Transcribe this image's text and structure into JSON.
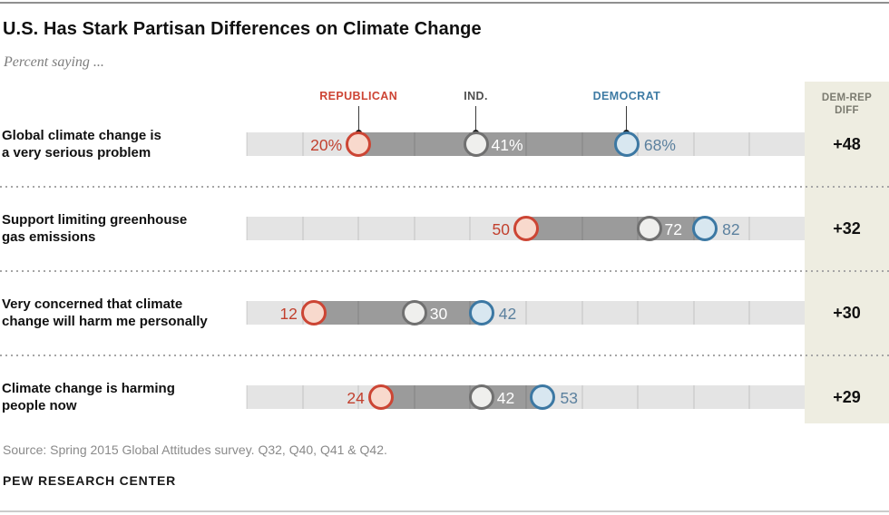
{
  "header": {
    "title": "U.S. Has Stark Partisan Differences on Climate Change",
    "subtitle": "Percent saying ..."
  },
  "legend": [
    {
      "key": "rep",
      "label": "REPUBLICAN",
      "color": "#cd4434"
    },
    {
      "key": "ind",
      "label": "IND.",
      "color": "#4f4f4f"
    },
    {
      "key": "dem",
      "label": "DEMOCRAT",
      "color": "#3e7ba4"
    }
  ],
  "diff_panel": {
    "header_line1": "DEM-REP",
    "header_line2": "DIFF"
  },
  "chart_data": {
    "type": "dot-plot",
    "series_names": [
      "Republican",
      "Independent",
      "Democrat"
    ],
    "axis": {
      "min": 0,
      "max": 100,
      "tick_interval": 10,
      "grid": true
    },
    "rows": [
      {
        "label_lines": [
          "Global climate change is",
          "a very serious problem"
        ],
        "rep": 20,
        "ind": 41,
        "dem": 68,
        "rep_text": "20%",
        "ind_text": "41%",
        "dem_text": "68%",
        "diff": "+48"
      },
      {
        "label_lines": [
          "Support limiting greenhouse",
          "gas emissions"
        ],
        "rep": 50,
        "ind": 72,
        "dem": 82,
        "rep_text": "50",
        "ind_text": "72",
        "dem_text": "82",
        "diff": "+32"
      },
      {
        "label_lines": [
          "Very concerned that climate",
          "change will harm me personally"
        ],
        "rep": 12,
        "ind": 30,
        "dem": 42,
        "rep_text": "12",
        "ind_text": "30",
        "dem_text": "42",
        "diff": "+30"
      },
      {
        "label_lines": [
          "Climate change is harming",
          "people now"
        ],
        "rep": 24,
        "ind": 42,
        "dem": 53,
        "rep_text": "24",
        "ind_text": "42",
        "dem_text": "53",
        "diff": "+29"
      }
    ]
  },
  "colors": {
    "track": "#e4e4e4",
    "range_bar": "#9b9b9b",
    "rep_stroke": "#cc4534",
    "rep_fill": "#f8d9cd",
    "rep_value_text": "#c2402e",
    "ind_stroke": "#707070",
    "ind_fill": "#efefed",
    "ind_value_text": "#ffffff",
    "dem_stroke": "#3c78a3",
    "dem_fill": "#d8e7f0",
    "dem_value_text": "#5b809e",
    "panel_bg": "#eeede1"
  },
  "footer": {
    "source": "Source: Spring 2015 Global Attitudes survey. Q32, Q40, Q41 & Q42.",
    "brand": "PEW RESEARCH CENTER"
  }
}
